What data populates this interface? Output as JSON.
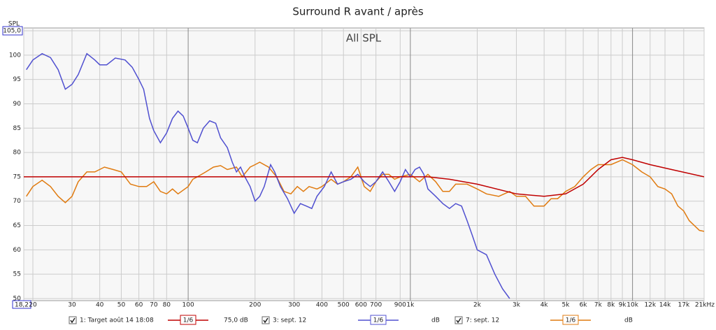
{
  "chart_data": {
    "type": "line",
    "title": "Surround R avant / après",
    "subtitle": "All SPL",
    "y_label": "SPL",
    "log_x": true,
    "grid": true,
    "xlim": [
      18.2,
      21000
    ],
    "ylim": [
      50,
      105
    ],
    "xticks": [
      {
        "value": 18.2,
        "label": "18,2"
      },
      20,
      30,
      40,
      50,
      60,
      70,
      80,
      100,
      200,
      300,
      400,
      500,
      600,
      700,
      {
        "value": 900,
        "label": "900"
      },
      {
        "value": 1000,
        "label": "1k"
      },
      {
        "value": 2000,
        "label": "2k"
      },
      {
        "value": 3000,
        "label": "3k"
      },
      {
        "value": 4000,
        "label": "4k"
      },
      {
        "value": 5000,
        "label": "5k"
      },
      {
        "value": 6000,
        "label": "6k"
      },
      {
        "value": 7000,
        "label": "7k"
      },
      {
        "value": 8000,
        "label": "8k"
      },
      {
        "value": 9000,
        "label": "9k"
      },
      {
        "value": 10000,
        "label": "10k"
      },
      {
        "value": 12000,
        "label": "12k"
      },
      {
        "value": 14000,
        "label": "14k"
      },
      {
        "value": 17000,
        "label": "17k"
      },
      {
        "value": 21000,
        "label": "21kHz"
      }
    ],
    "yticks": [
      50,
      55,
      60,
      65,
      70,
      75,
      80,
      85,
      90,
      95,
      100,
      {
        "value": 105,
        "label": "105,0"
      }
    ],
    "series": [
      {
        "name": "1: Target août 14 18:08",
        "color": "#c00000",
        "smoothing": "1/6",
        "level": "75,0 dB",
        "x": [
          18.2,
          1200,
          1500,
          2000,
          3000,
          4000,
          5000,
          6000,
          7000,
          8000,
          9000,
          10000,
          12000,
          15000,
          21000
        ],
        "values": [
          75,
          75,
          74.5,
          73.5,
          71.5,
          71,
          71.5,
          73.5,
          76.5,
          78.5,
          79,
          78.5,
          77.5,
          76.5,
          75
        ]
      },
      {
        "name": "3: sept. 12",
        "color": "#5050d0",
        "smoothing": "1/6",
        "level": "dB",
        "x": [
          18.7,
          20,
          22,
          24,
          26,
          28,
          30,
          32,
          35,
          38,
          40,
          43,
          47,
          52,
          56,
          60,
          63,
          67,
          70,
          75,
          80,
          85,
          90,
          95,
          100,
          105,
          110,
          117,
          125,
          133,
          140,
          150,
          158,
          165,
          172,
          180,
          190,
          200,
          210,
          220,
          235,
          245,
          260,
          280,
          300,
          320,
          340,
          360,
          380,
          410,
          440,
          470,
          500,
          540,
          580,
          620,
          660,
          700,
          750,
          800,
          850,
          900,
          950,
          1000,
          1050,
          1100,
          1150,
          1200,
          1300,
          1400,
          1500,
          1600,
          1700,
          1800,
          1900,
          2000,
          2200,
          2400,
          2600,
          2800
        ],
        "values": [
          97,
          99,
          100.3,
          99.5,
          97,
          93,
          94,
          96,
          100.3,
          99,
          98,
          98,
          99.4,
          99,
          97.5,
          95,
          93,
          87,
          84.5,
          82,
          84,
          87,
          88.5,
          87.5,
          85,
          82.5,
          82,
          85,
          86.5,
          86,
          83,
          81,
          78,
          76,
          77,
          75,
          73,
          70,
          71,
          73,
          77.5,
          76,
          73,
          70.5,
          67.5,
          69.5,
          69,
          68.5,
          71,
          73,
          76,
          73.5,
          74,
          74.5,
          75.5,
          74,
          73,
          74,
          76,
          74,
          72,
          74,
          76.5,
          75,
          76.5,
          77,
          75.5,
          72.5,
          71,
          69.5,
          68.5,
          69.5,
          69,
          66,
          63,
          60,
          59,
          55,
          52,
          50
        ]
      },
      {
        "name": "7: sept. 12",
        "color": "#e07b10",
        "smoothing": "1/6",
        "level": "dB",
        "x": [
          18.7,
          20,
          22,
          24,
          26,
          28,
          30,
          32,
          35,
          38,
          42,
          46,
          50,
          55,
          60,
          65,
          70,
          75,
          80,
          85,
          90,
          100,
          105,
          110,
          120,
          130,
          140,
          150,
          165,
          175,
          190,
          200,
          210,
          230,
          250,
          270,
          290,
          310,
          330,
          350,
          380,
          400,
          440,
          470,
          500,
          540,
          580,
          620,
          660,
          700,
          750,
          800,
          850,
          900,
          1000,
          1100,
          1200,
          1300,
          1400,
          1500,
          1600,
          1800,
          2000,
          2200,
          2500,
          2800,
          3000,
          3300,
          3600,
          4000,
          4300,
          4600,
          5000,
          5500,
          6000,
          6500,
          7000,
          8000,
          9000,
          10000,
          11000,
          12000,
          13000,
          14000,
          15000,
          16000,
          17000,
          18000,
          20000,
          21000
        ],
        "values": [
          71,
          73,
          74.3,
          73,
          71,
          69.7,
          71,
          74,
          76,
          76,
          77,
          76.5,
          76,
          73.5,
          73,
          73,
          74,
          72,
          71.5,
          72.5,
          71.5,
          73,
          74.5,
          75,
          76,
          77,
          77.3,
          76.5,
          77,
          75,
          77,
          77.5,
          78,
          77,
          75,
          72,
          71.5,
          73,
          72,
          73,
          72.5,
          73,
          74.5,
          73.5,
          74,
          75,
          77,
          73,
          72,
          74,
          75.5,
          75.5,
          74.5,
          75,
          75.5,
          74,
          75.5,
          74,
          72,
          72,
          73.5,
          73.5,
          72.5,
          71.5,
          71,
          72,
          71,
          71,
          69,
          69,
          70.5,
          70.5,
          72,
          73,
          75,
          76.5,
          77.5,
          77.5,
          78.5,
          77.5,
          76,
          75,
          73,
          72.5,
          71.5,
          69,
          68,
          66,
          64,
          63.8
        ]
      }
    ]
  }
}
